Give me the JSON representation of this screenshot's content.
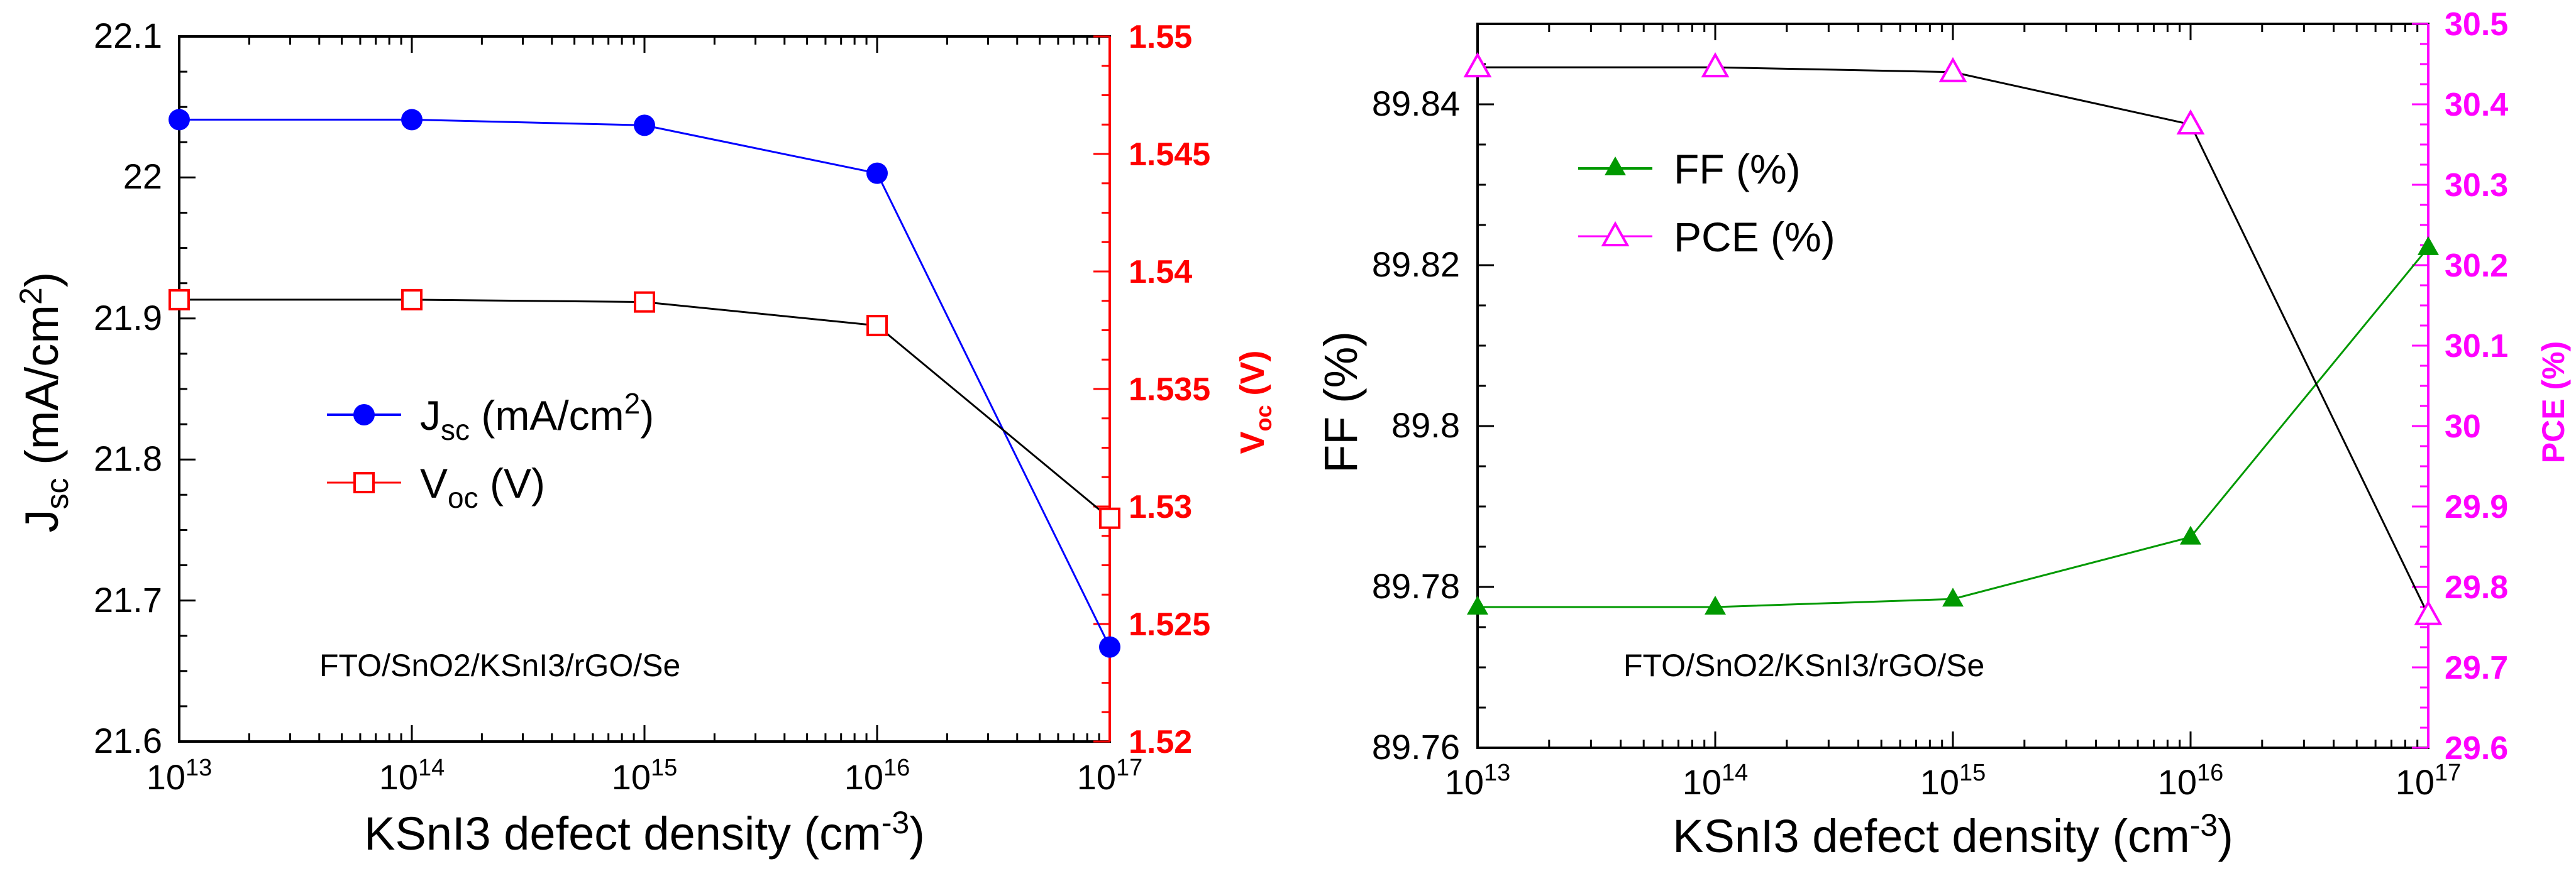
{
  "chart_data": [
    {
      "type": "line",
      "xscale": "log",
      "x": [
        10000000000000.0,
        100000000000000.0,
        1000000000000000.0,
        1e+16,
        1e+17
      ],
      "xlim": [
        10000000000000.0,
        1e+17
      ],
      "x_ticks": [
        "10",
        "10",
        "10",
        "10",
        "10"
      ],
      "x_tick_exponents": [
        "13",
        "14",
        "15",
        "16",
        "17"
      ],
      "xlabel": "KSnI3 defect density (cm",
      "xlabel_sup": "-3",
      "xlabel_end": ")",
      "ylabel": "J",
      "ylabel_sub": "sc",
      "ylabel_unit": " (mA/cm",
      "ylabel_sup": "2",
      "ylabel_end": ")",
      "ylim": [
        21.6,
        22.1
      ],
      "y_ticks": [
        "21.6",
        "21.7",
        "21.8",
        "21.9",
        "22",
        "22.1"
      ],
      "y2label": "V",
      "y2label_sub": "oc",
      "y2label_end": " (V)",
      "y2lim": [
        1.52,
        1.55
      ],
      "y2_ticks": [
        "1.52",
        "1.525",
        "1.53",
        "1.535",
        "1.54",
        "1.545",
        "1.55"
      ],
      "series": [
        {
          "name": "J",
          "name_sub": "sc",
          "name_unit": " (mA/cm",
          "name_sup": "2",
          "name_end": ")",
          "axis": "left",
          "color": "#0000ff",
          "marker": "filled-circle",
          "values": [
            22.041,
            22.041,
            22.037,
            22.003,
            21.667
          ]
        },
        {
          "name": "V",
          "name_sub": "oc",
          "name_end": " (V)",
          "axis": "right",
          "color": "#ff0000",
          "line_color": "#000000",
          "marker": "open-square",
          "values": [
            1.5388,
            1.5388,
            1.5387,
            1.5377,
            1.5295
          ]
        }
      ],
      "annotation": "FTO/SnO2/KSnI3/rGO/Se",
      "left_color": "#000000",
      "right_color": "#ff0000"
    },
    {
      "type": "line",
      "xscale": "log",
      "x": [
        10000000000000.0,
        100000000000000.0,
        1000000000000000.0,
        1e+16,
        1e+17
      ],
      "xlim": [
        10000000000000.0,
        1e+17
      ],
      "x_ticks": [
        "10",
        "10",
        "10",
        "10",
        "10"
      ],
      "x_tick_exponents": [
        "13",
        "14",
        "15",
        "16",
        "17"
      ],
      "xlabel": "KSnI3 defect density (cm",
      "xlabel_sup": "-3",
      "xlabel_end": ")",
      "ylabel": "FF (%)",
      "ylim": [
        89.76,
        89.85
      ],
      "y_ticks": [
        "89.76",
        "89.78",
        "89.8",
        "89.82",
        "89.84"
      ],
      "y2label": "PCE (%)",
      "y2lim": [
        29.6,
        30.5
      ],
      "y2_ticks": [
        "29.6",
        "29.7",
        "29.8",
        "29.9",
        "30",
        "30.1",
        "30.2",
        "30.3",
        "30.4",
        "30.5"
      ],
      "series": [
        {
          "name": "FF (%)",
          "axis": "left",
          "color": "#009900",
          "marker": "filled-triangle",
          "values": [
            89.7775,
            89.7775,
            89.7785,
            89.7862,
            89.8222
          ]
        },
        {
          "name": "PCE (%)",
          "axis": "right",
          "color": "#ff00ff",
          "line_color": "#000000",
          "marker": "open-triangle",
          "values": [
            30.446,
            30.446,
            30.44,
            30.375,
            29.765
          ]
        }
      ],
      "annotation": "FTO/SnO2/KSnI3/rGO/Se",
      "left_color": "#000000",
      "right_color": "#ff00ff"
    }
  ]
}
